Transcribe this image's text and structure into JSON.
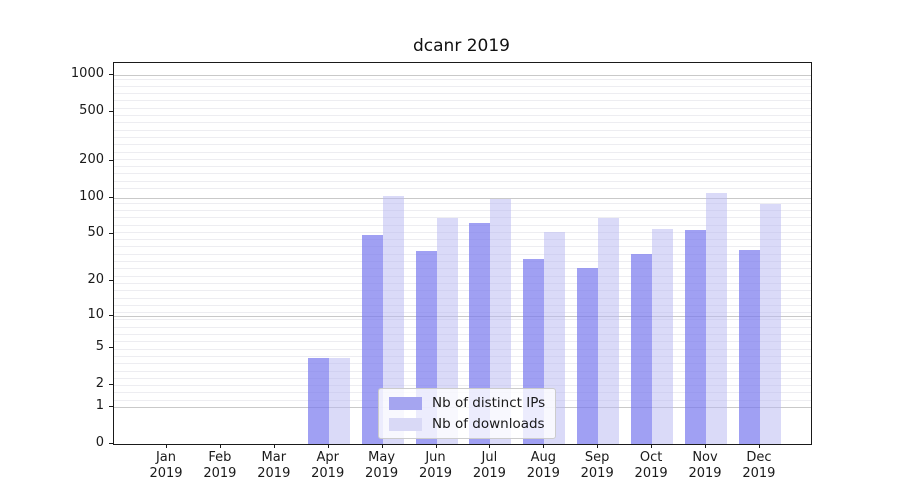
{
  "title": "dcanr 2019",
  "chart_data": {
    "type": "bar",
    "title": "dcanr 2019",
    "categories": [
      {
        "month": "Jan",
        "year": "2019"
      },
      {
        "month": "Feb",
        "year": "2019"
      },
      {
        "month": "Mar",
        "year": "2019"
      },
      {
        "month": "Apr",
        "year": "2019"
      },
      {
        "month": "May",
        "year": "2019"
      },
      {
        "month": "Jun",
        "year": "2019"
      },
      {
        "month": "Jul",
        "year": "2019"
      },
      {
        "month": "Aug",
        "year": "2019"
      },
      {
        "month": "Sep",
        "year": "2019"
      },
      {
        "month": "Oct",
        "year": "2019"
      },
      {
        "month": "Nov",
        "year": "2019"
      },
      {
        "month": "Dec",
        "year": "2019"
      }
    ],
    "series": [
      {
        "key": "ips",
        "name": "Nb of distinct IPs",
        "color": "#a5a5f0",
        "fill": "rgba(120,120,238,0.70)",
        "values": [
          0,
          0,
          0,
          4,
          49,
          36,
          62,
          31,
          26,
          34,
          54,
          37
        ]
      },
      {
        "key": "downloads",
        "name": "Nb of downloads",
        "color": "#d9d9f6",
        "fill": "rgba(185,185,242,0.52)",
        "values": [
          0,
          0,
          0,
          4,
          104,
          68,
          98,
          52,
          68,
          55,
          110,
          89
        ]
      }
    ],
    "y_axis": {
      "ticks": [
        1000,
        500,
        200,
        100,
        50,
        20,
        10,
        5,
        2,
        1,
        0
      ],
      "scale": "log1p",
      "ylim": [
        0,
        1254
      ]
    },
    "x_axis": {
      "label_year_on_second_line": true
    },
    "grid": {
      "major": [
        1,
        10,
        100,
        1000
      ],
      "major_color": "#c9c9c9",
      "minor_color": "#ededf1"
    },
    "legend": {
      "position": "lower-center",
      "entries": [
        "Nb of distinct IPs",
        "Nb of downloads"
      ]
    }
  }
}
